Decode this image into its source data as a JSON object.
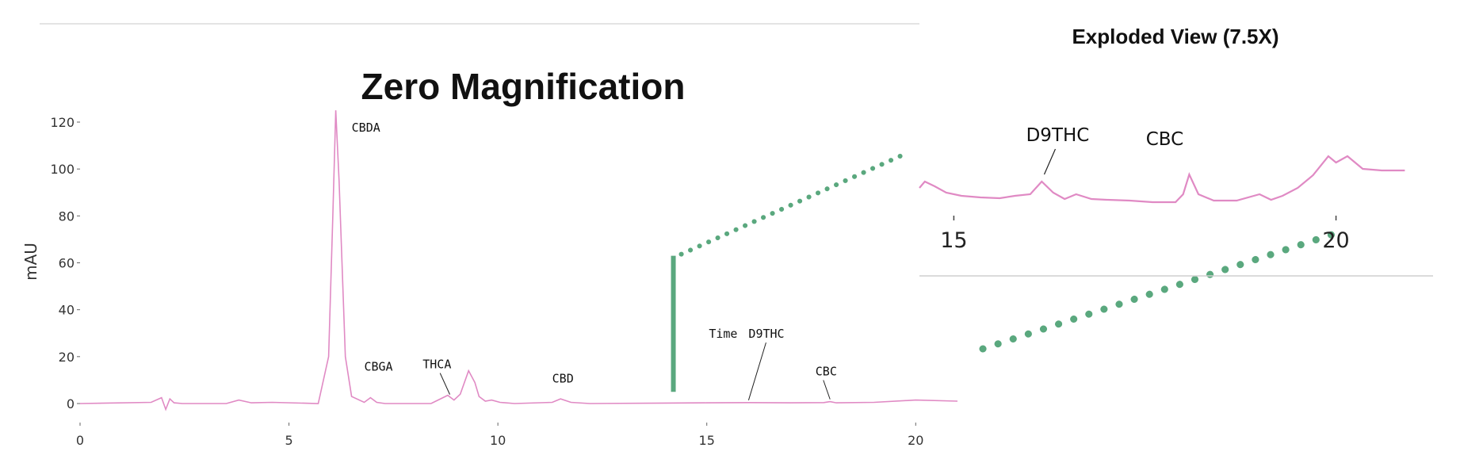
{
  "chart_data": [
    {
      "type": "line",
      "title": "Zero Magnification",
      "ylabel": "mAU",
      "xlim": [
        0,
        21
      ],
      "ylim": [
        0,
        125
      ],
      "x_ticks": [
        0,
        5,
        10,
        15,
        20
      ],
      "y_ticks": [
        0,
        20,
        40,
        60,
        80,
        100,
        120
      ],
      "line_color": "#e08ac4",
      "highlight_color": "#5aa87e",
      "series": [
        {
          "x": [
            0,
            1.7,
            1.95,
            2.05,
            2.15,
            2.25,
            2.45,
            3.5,
            3.8,
            4.1,
            4.6,
            5.7,
            5.95,
            6.05,
            6.12,
            6.2,
            6.35,
            6.5,
            6.8,
            6.95,
            7.1,
            7.3,
            8.4,
            8.8,
            8.95,
            9.1,
            9.3,
            9.45,
            9.55,
            9.7,
            9.85,
            10.05,
            10.4,
            11.3,
            11.5,
            11.75,
            12.2,
            14.0,
            15.0,
            16.0,
            17.0,
            17.8,
            17.95,
            18.1,
            19.0,
            20.0,
            21.0
          ],
          "y": [
            0,
            0.5,
            2.5,
            -2.5,
            2,
            0.3,
            0,
            0,
            1.5,
            0.3,
            0.5,
            0,
            20,
            80,
            125,
            95,
            20,
            3,
            0.5,
            2.5,
            0.5,
            0,
            0,
            3.5,
            1.5,
            4,
            14,
            9,
            3,
            1,
            1.5,
            0.5,
            0,
            0.5,
            2,
            0.5,
            0,
            0.2,
            0.3,
            0.4,
            0.3,
            0.4,
            0.8,
            0.3,
            0.5,
            1.5,
            1
          ]
        }
      ],
      "annotations": [
        {
          "label": "CBDA",
          "x": 6.5,
          "y": 116
        },
        {
          "label": "CBGA",
          "x": 6.8,
          "y": 14
        },
        {
          "label": "THCA",
          "x": 8.2,
          "y": 15
        },
        {
          "label": "CBD",
          "x": 11.3,
          "y": 9
        },
        {
          "label": "Time",
          "x": 15.05,
          "y": 28
        },
        {
          "label": "D9THC",
          "x": 16.0,
          "y": 28
        },
        {
          "label": "CBC",
          "x": 17.6,
          "y": 12
        }
      ],
      "highlight_bar": {
        "x": 14.2,
        "y_from": 5,
        "y_to": 63
      }
    },
    {
      "type": "line",
      "title": "Exploded View (7.5X)",
      "xlim": [
        14.55,
        21.0
      ],
      "x_ticks": [
        15,
        20
      ],
      "series": [
        {
          "x": [
            14.55,
            14.62,
            14.75,
            14.9,
            15.1,
            15.35,
            15.6,
            15.8,
            16.0,
            16.15,
            16.3,
            16.45,
            16.6,
            16.8,
            17.0,
            17.3,
            17.6,
            17.9,
            18.0,
            18.08,
            18.2,
            18.4,
            18.7,
            19.0,
            19.15,
            19.3,
            19.5,
            19.7,
            19.9,
            20.0,
            20.15,
            20.35,
            20.6,
            20.9
          ],
          "y": [
            0.58,
            0.66,
            0.6,
            0.52,
            0.48,
            0.46,
            0.45,
            0.48,
            0.5,
            0.66,
            0.52,
            0.44,
            0.5,
            0.44,
            0.43,
            0.42,
            0.4,
            0.4,
            0.5,
            0.75,
            0.5,
            0.42,
            0.42,
            0.5,
            0.43,
            0.48,
            0.58,
            0.74,
            0.98,
            0.9,
            0.98,
            0.82,
            0.8,
            0.8
          ]
        }
      ],
      "annotations": [
        {
          "label": "D9THC",
          "x": 16.1
        },
        {
          "label": "CBC",
          "x": 17.5
        }
      ]
    }
  ]
}
